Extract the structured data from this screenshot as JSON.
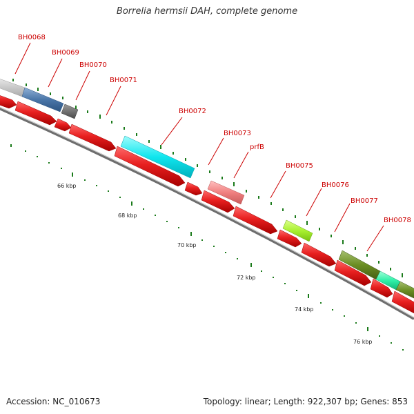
{
  "title": "Borrelia hermsii DAH, complete genome",
  "footer": {
    "accession": "Accession: NC_010673",
    "summary": "Topology: linear; Length: 922,307 bp; Genes: 853"
  },
  "colors": {
    "cds": "#e31b1b",
    "label": "#cc0000",
    "tick": "#1a7a1a",
    "backbone": "#888888"
  },
  "gene_labels": [
    "BH0068",
    "BH0069",
    "BH0070",
    "BH0071",
    "BH0072",
    "BH0073",
    "prfB",
    "BH0075",
    "BH0076",
    "BH0077",
    "BH0078"
  ],
  "kbp_labels": [
    "66 kbp",
    "68 kbp",
    "70 kbp",
    "72 kbp",
    "74 kbp",
    "76 kbp"
  ]
}
